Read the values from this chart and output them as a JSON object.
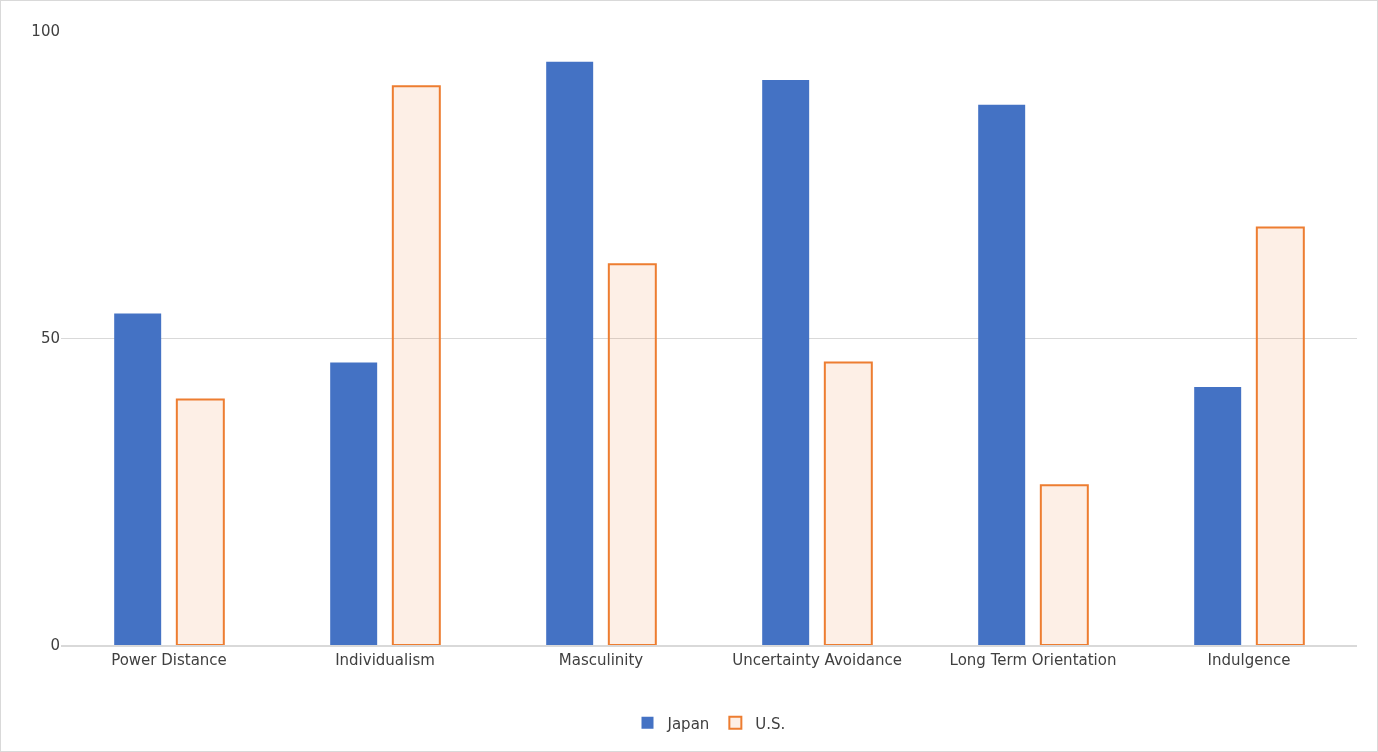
{
  "chart_data": {
    "type": "bar",
    "categories": [
      "Power Distance",
      "Individualism",
      "Masculinity",
      "Uncertainty Avoidance",
      "Long Term Orientation",
      "Indulgence"
    ],
    "series": [
      {
        "name": "Japan",
        "color": "#4472c4",
        "values": [
          54,
          46,
          95,
          92,
          88,
          42
        ]
      },
      {
        "name": "U.S.",
        "color": "#ed7d31",
        "values": [
          40,
          91,
          62,
          46,
          26,
          68
        ]
      }
    ],
    "ylim": [
      0,
      100
    ],
    "yticks": [
      0,
      50,
      100
    ],
    "grid": "y",
    "legend": "bottom"
  }
}
